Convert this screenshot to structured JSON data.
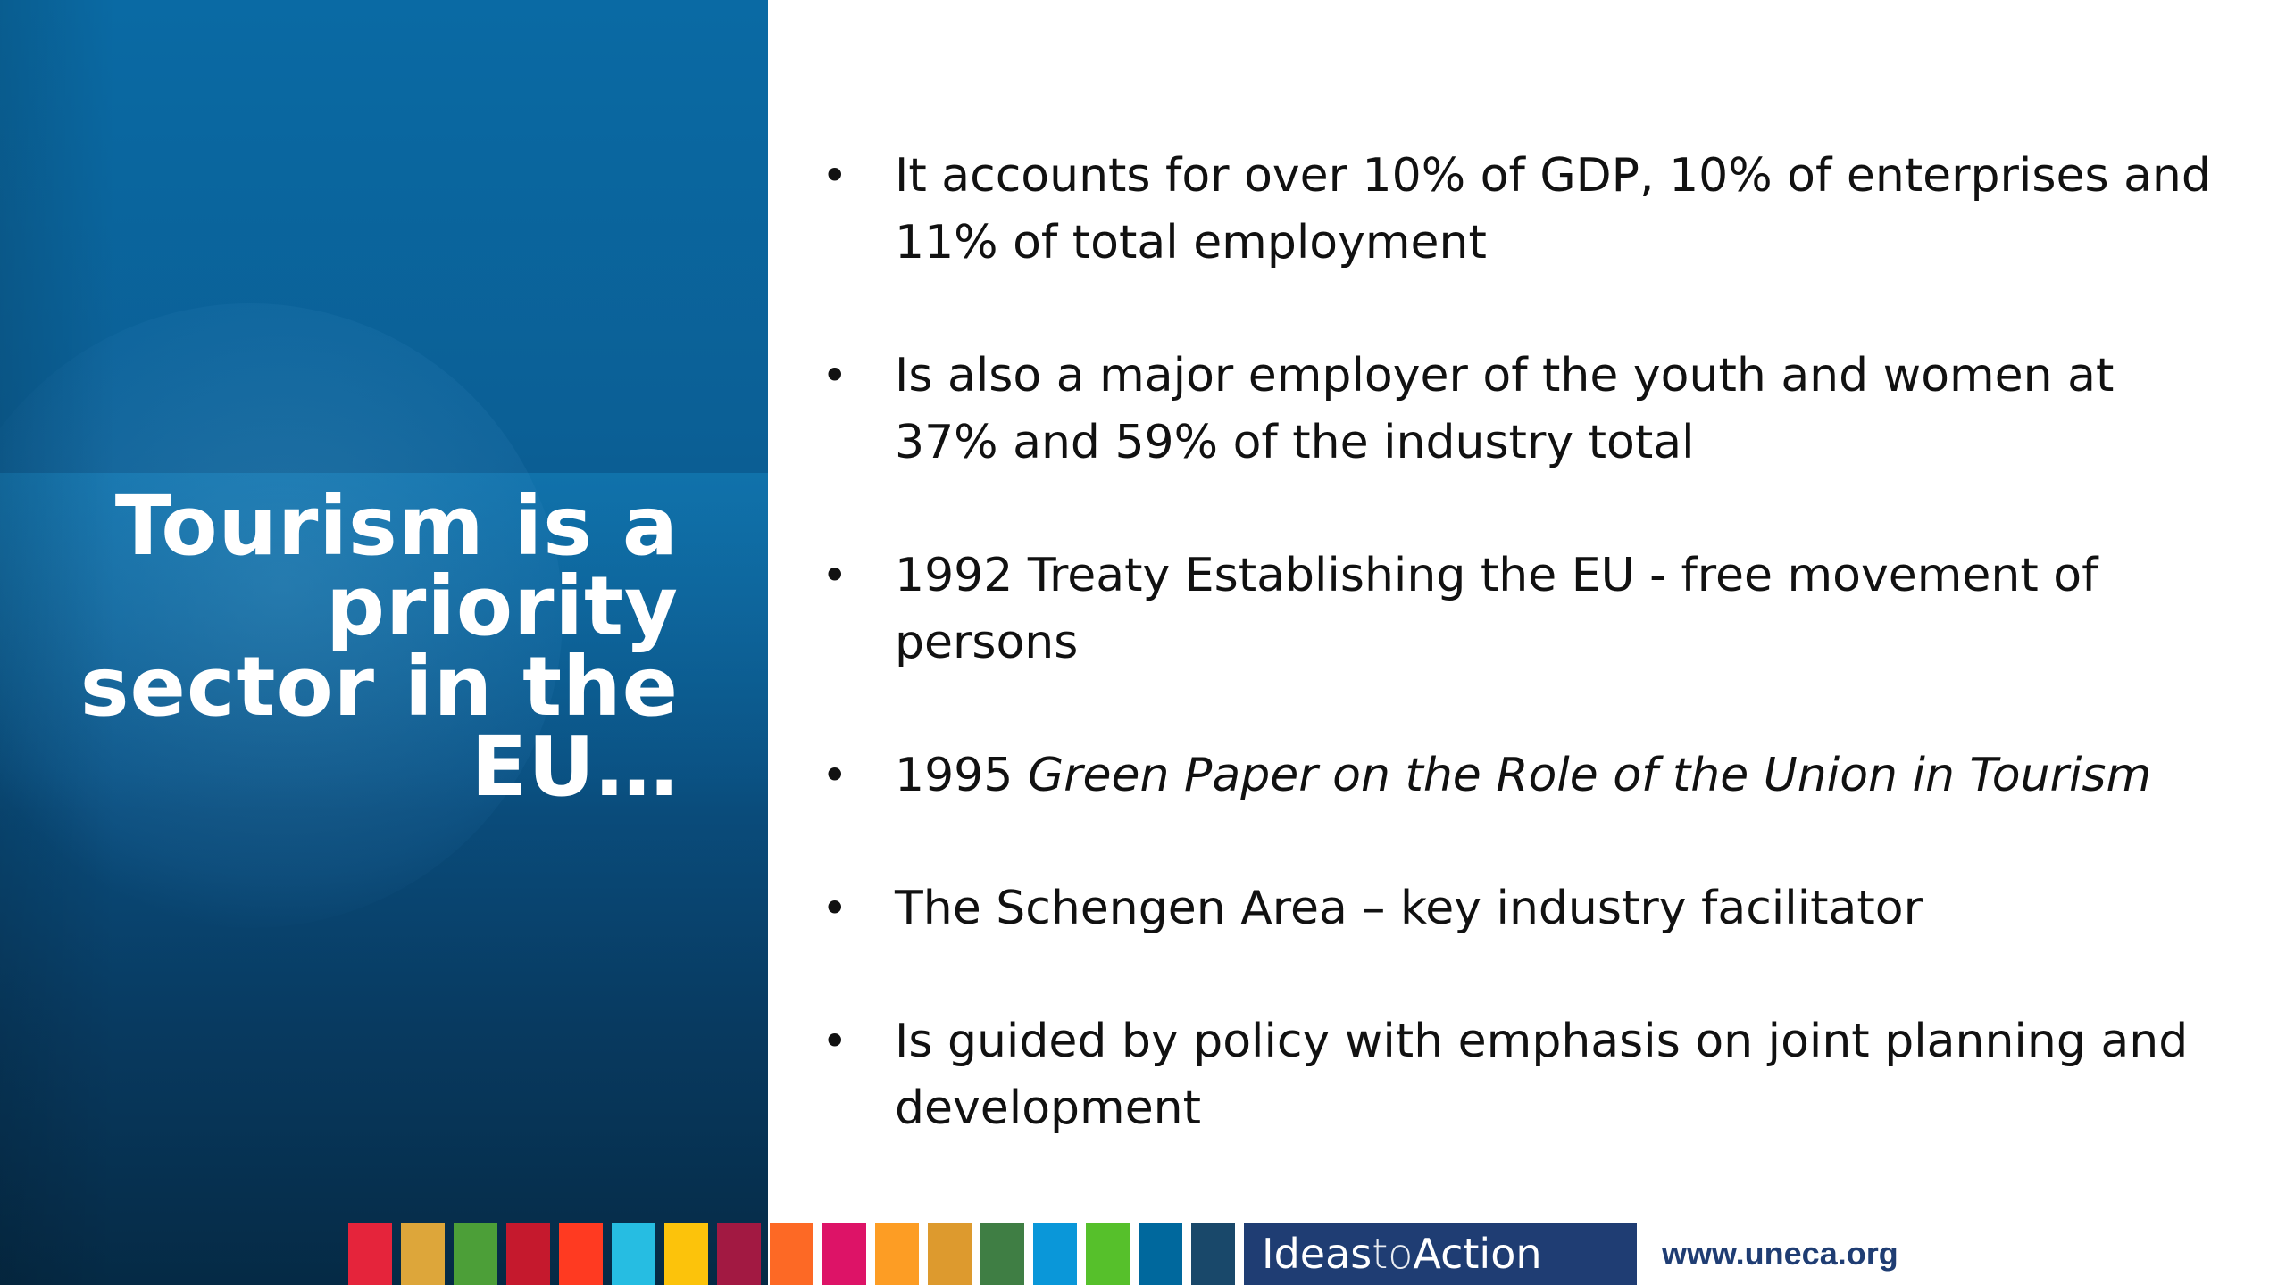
{
  "slide": {
    "title_lines": [
      "Tourism is a",
      "priority",
      "sector in the",
      "EU…"
    ]
  },
  "bullets": [
    {
      "text": "It accounts for over 10% of GDP, 10% of enterprises and 11% of total employment"
    },
    {
      "text": "Is also a major employer of the youth and women at 37% and 59% of the industry total"
    },
    {
      "text": "1992 Treaty Establishing the EU - free movement of persons"
    },
    {
      "prefix": "1995 ",
      "italic": "Green Paper on the Role of the Union in Tourism"
    },
    {
      "text": "The Schengen Area – key industry facilitator"
    },
    {
      "text": "Is guided by policy with emphasis on joint planning and development"
    }
  ],
  "bullet_symbol": "•",
  "footer": {
    "sdg_colors": [
      "#e5243b",
      "#dda63a",
      "#4c9f38",
      "#c5192d",
      "#ff3a21",
      "#26bde2",
      "#fcc30b",
      "#a21942",
      "#fd6925",
      "#dd1367",
      "#fd9d24",
      "#dd9a2e",
      "#3f7e44",
      "#0a97d9",
      "#56c02b",
      "#00689d",
      "#19486a"
    ],
    "ideas_part1": "Ideas",
    "ideas_part2": "to",
    "ideas_part3": "Action",
    "website": "www.uneca.org"
  },
  "colors": {
    "panel_blue": "#0a6aa4",
    "footer_navy": "#1f3d73"
  }
}
